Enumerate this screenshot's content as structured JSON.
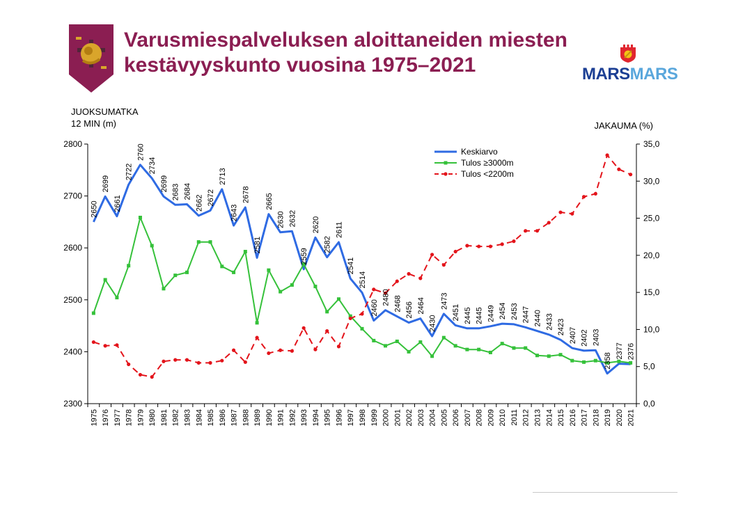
{
  "header": {
    "title_line1": "Varusmiespalveluksen aloittaneiden miesten",
    "title_line2": "kestävyyskunto vuosina 1975–2021"
  },
  "logos": {
    "emblem_icon": "lion-emblem-icon",
    "brand_icon": "lion-crest-icon",
    "brand_text_1": "MARS",
    "brand_text_2": "MARS"
  },
  "colors": {
    "title": "#8b1e52",
    "keskiarvo": "#2f6be3",
    "tulos3000": "#35c13a",
    "tulos2200": "#e3141b",
    "brand_dark": "#1c3f94",
    "brand_light": "#5aa7dc"
  },
  "chart_data": {
    "type": "line",
    "ylabel_line1": "JUOKSUMATKA",
    "ylabel_line2": "12 MIN (m)",
    "y2label": "JAKAUMA (%)",
    "ylim": [
      2300,
      2800
    ],
    "yticks": [
      "2300",
      "2400",
      "2500",
      "2600",
      "2700",
      "2800"
    ],
    "y2lim": [
      0,
      35
    ],
    "y2ticks": [
      "0,0",
      "5,0",
      "10,0",
      "15,0",
      "20,0",
      "25,0",
      "30,0",
      "35,0"
    ],
    "legend_position": "top-right",
    "x": [
      "1975",
      "1976",
      "1977",
      "1978",
      "1979",
      "1980",
      "1981",
      "1982",
      "1983",
      "1984",
      "1985",
      "1986",
      "1987",
      "1988",
      "1989",
      "1990",
      "1991",
      "1992",
      "1993",
      "1994",
      "1995",
      "1996",
      "1997",
      "1998",
      "1999",
      "2000",
      "2001",
      "2002",
      "2003",
      "2004",
      "2005",
      "2006",
      "2007",
      "2008",
      "2009",
      "2010",
      "2011",
      "2012",
      "2013",
      "2014",
      "2015",
      "2016",
      "2017",
      "2018",
      "2019",
      "2020",
      "2021"
    ],
    "series": [
      {
        "name": "Keskiarvo",
        "axis": "left",
        "values": [
          2650,
          2699,
          2661,
          2722,
          2760,
          2734,
          2699,
          2683,
          2684,
          2662,
          2672,
          2713,
          2643,
          2678,
          2581,
          2665,
          2630,
          2632,
          2559,
          2620,
          2582,
          2611,
          2541,
          2514,
          2460,
          2480,
          2468,
          2456,
          2464,
          2430,
          2473,
          2451,
          2445,
          2445,
          2449,
          2454,
          2453,
          2447,
          2440,
          2433,
          2423,
          2407,
          2402,
          2403,
          2358,
          2377,
          2376
        ],
        "labels": [
          "2650",
          "2699",
          "2661",
          "2722",
          "2760",
          "2734",
          "2699",
          "2683",
          "2684",
          "2662",
          "2672",
          "2713",
          "2643",
          "2678",
          "2581",
          "2665",
          "2630",
          "2632",
          "2559",
          "2620",
          "2582",
          "2611",
          "2541",
          "2514",
          "2460",
          "2480",
          "2468",
          "2456",
          "2464",
          "2430",
          "2473",
          "2451",
          "2445",
          "2445",
          "2449",
          "2454",
          "2453",
          "2447",
          "2440",
          "2433",
          "2423",
          "2407",
          "2402",
          "2403",
          "2358",
          "2377",
          "2376"
        ]
      },
      {
        "name": "Tulos ≥3000m",
        "axis": "right",
        "values": [
          12.2,
          16.7,
          14.3,
          18.6,
          25.1,
          21.3,
          15.5,
          17.3,
          17.7,
          21.8,
          21.8,
          18.5,
          17.7,
          20.5,
          10.9,
          18.0,
          15.1,
          16.0,
          18.8,
          15.8,
          12.4,
          14.1,
          11.8,
          10.1,
          8.5,
          7.8,
          8.4,
          7.0,
          8.3,
          6.4,
          8.9,
          7.8,
          7.3,
          7.3,
          6.9,
          8.1,
          7.5,
          7.5,
          6.5,
          6.4,
          6.6,
          5.8,
          5.6,
          5.8,
          5.5,
          5.7,
          5.5
        ]
      },
      {
        "name": "Tulos <2200m",
        "axis": "right",
        "values": [
          8.3,
          7.8,
          7.9,
          5.3,
          3.9,
          3.6,
          5.7,
          5.9,
          5.9,
          5.5,
          5.5,
          5.8,
          7.2,
          5.6,
          8.9,
          6.8,
          7.2,
          7.1,
          10.2,
          7.3,
          9.8,
          7.7,
          11.5,
          12.1,
          15.4,
          14.9,
          16.5,
          17.5,
          16.9,
          20.1,
          18.7,
          20.5,
          21.3,
          21.2,
          21.2,
          21.5,
          21.9,
          23.3,
          23.3,
          24.4,
          25.8,
          25.6,
          27.9,
          28.3,
          33.5,
          31.6,
          30.9
        ]
      }
    ]
  }
}
